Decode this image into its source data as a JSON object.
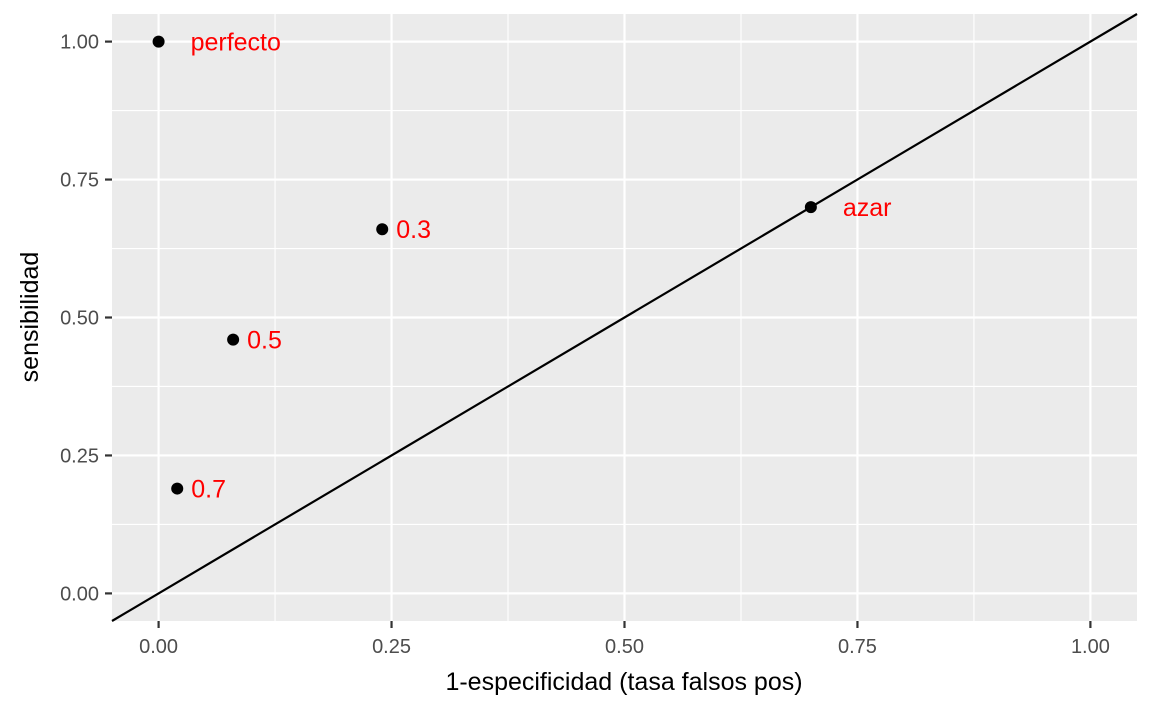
{
  "chart_data": {
    "type": "scatter",
    "title": "",
    "xlabel": "1-especificidad (tasa falsos pos)",
    "ylabel": "sensibilidad",
    "xlim": [
      -0.05,
      1.05
    ],
    "ylim": [
      -0.05,
      1.05
    ],
    "x_ticks": [
      0,
      0.25,
      0.5,
      0.75,
      1
    ],
    "x_tick_labels": [
      "0.00",
      "0.25",
      "0.50",
      "0.75",
      "1.00"
    ],
    "y_ticks": [
      0,
      0.25,
      0.5,
      0.75,
      1
    ],
    "y_tick_labels": [
      "0.00",
      "0.25",
      "0.50",
      "0.75",
      "1.00"
    ],
    "grid": true,
    "reference_line": {
      "slope": 1,
      "intercept": 0
    },
    "points": [
      {
        "x": 0.0,
        "y": 1.0,
        "label": "perfecto"
      },
      {
        "x": 0.24,
        "y": 0.66,
        "label": "0.3"
      },
      {
        "x": 0.08,
        "y": 0.46,
        "label": "0.5"
      },
      {
        "x": 0.02,
        "y": 0.19,
        "label": "0.7"
      },
      {
        "x": 0.7,
        "y": 0.7,
        "label": "azar"
      }
    ],
    "colors": {
      "panel_background": "#ebebeb",
      "grid": "#ffffff",
      "point": "#000000",
      "label": "#ff0000",
      "line": "#000000",
      "tick_text": "#4d4d4d"
    }
  }
}
